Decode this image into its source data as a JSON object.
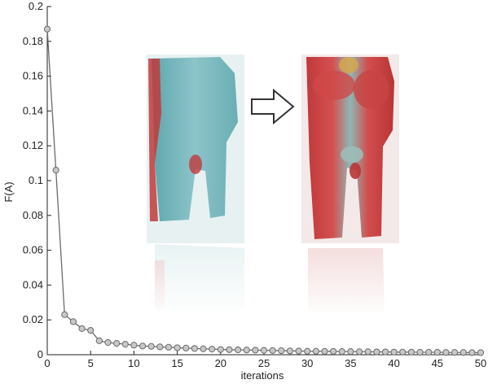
{
  "chart_data": {
    "type": "line",
    "xlabel": "iterations",
    "ylabel": "F(A)",
    "xlim": [
      0,
      50
    ],
    "ylim": [
      0,
      0.2
    ],
    "xticks": [
      "0",
      "5",
      "10",
      "15",
      "20",
      "25",
      "30",
      "35",
      "40",
      "45",
      "50"
    ],
    "yticks": [
      "0",
      "0.02",
      "0.04",
      "0.06",
      "0.08",
      "0.1",
      "0.12",
      "0.14",
      "0.16",
      "0.18",
      "0.2"
    ],
    "grid": false,
    "series": [
      {
        "x": [
          0,
          1,
          2,
          3,
          4,
          5,
          6,
          7,
          8,
          9,
          10,
          11,
          12,
          13,
          14,
          15,
          16,
          17,
          18,
          19,
          20,
          21,
          22,
          23,
          24,
          25,
          26,
          27,
          28,
          29,
          30,
          31,
          32,
          33,
          34,
          35,
          36,
          37,
          38,
          39,
          40,
          41,
          42,
          43,
          44,
          45,
          46,
          47,
          48,
          49,
          50
        ],
        "y": [
          0.187,
          0.106,
          0.023,
          0.019,
          0.015,
          0.014,
          0.008,
          0.007,
          0.0065,
          0.006,
          0.0055,
          0.005,
          0.0048,
          0.0045,
          0.0043,
          0.004,
          0.0038,
          0.0036,
          0.0034,
          0.0032,
          0.003,
          0.0029,
          0.0028,
          0.0027,
          0.0026,
          0.0025,
          0.0024,
          0.0023,
          0.0022,
          0.0021,
          0.002,
          0.002,
          0.0019,
          0.0019,
          0.0018,
          0.0018,
          0.0017,
          0.0017,
          0.0016,
          0.0016,
          0.0015,
          0.0015,
          0.0015,
          0.0014,
          0.0014,
          0.0014,
          0.0013,
          0.0013,
          0.0013,
          0.0012,
          0.0012
        ],
        "color": "#6b6b6b",
        "marker_fill": "#c8c8c8"
      }
    ]
  },
  "inset": {
    "volume_color": "#7fb9bf",
    "highlight_color": "#c0393b",
    "arrow_fill": "#ffffff",
    "arrow_stroke": "#333333"
  }
}
